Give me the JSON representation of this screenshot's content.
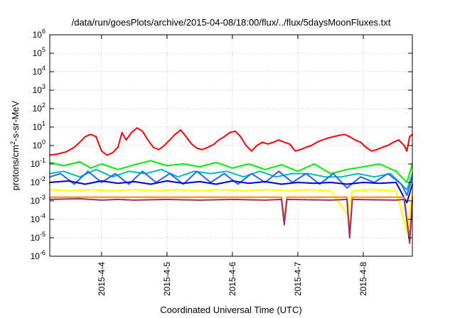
{
  "chart_data": {
    "type": "line",
    "title": "/data/run/goesPlots/archive/2015-04-08/18:00/flux/../flux/5daysMoonFluxes.txt",
    "xlabel": "Coordinated Universal Time (UTC)",
    "ylabel": {
      "prefix": "protons/cm",
      "sup": "2",
      "suffix": "-s-sr-MeV"
    },
    "yscale": "log",
    "ylim": [
      1e-06,
      1000000.0
    ],
    "xlim": [
      "2015-04-03T05:00",
      "2015-04-08T18:00"
    ],
    "grid": true,
    "y_ticks": [
      {
        "value": 1e-06,
        "base": "10",
        "exp": "-6"
      },
      {
        "value": 1e-05,
        "base": "10",
        "exp": "-5"
      },
      {
        "value": 0.0001,
        "base": "10",
        "exp": "-4"
      },
      {
        "value": 0.001,
        "base": "10",
        "exp": "-3"
      },
      {
        "value": 0.01,
        "base": "10",
        "exp": "-2"
      },
      {
        "value": 0.1,
        "base": "10",
        "exp": "-1"
      },
      {
        "value": 1.0,
        "base": "10",
        "exp": "0"
      },
      {
        "value": 10.0,
        "base": "10",
        "exp": "1"
      },
      {
        "value": 100.0,
        "base": "10",
        "exp": "2"
      },
      {
        "value": 1000.0,
        "base": "10",
        "exp": "3"
      },
      {
        "value": 10000.0,
        "base": "10",
        "exp": "4"
      },
      {
        "value": 100000.0,
        "base": "10",
        "exp": "5"
      },
      {
        "value": 1000000.0,
        "base": "10",
        "exp": "6"
      }
    ],
    "x_ticks": [
      {
        "value": "2015-04-04T00:00",
        "label": "2015-4-4"
      },
      {
        "value": "2015-04-05T00:00",
        "label": "2015-4-5"
      },
      {
        "value": "2015-04-06T00:00",
        "label": "2015-4-6"
      },
      {
        "value": "2015-04-07T00:00",
        "label": "2015-4-7"
      },
      {
        "value": "2015-04-08T00:00",
        "label": "2015-4-8"
      }
    ],
    "series": [
      {
        "color": "#ff0000",
        "points": [
          [
            "2015-04-03T05:00",
            0.3
          ],
          [
            "2015-04-03T08:00",
            0.35
          ],
          [
            "2015-04-03T11:00",
            0.45
          ],
          [
            "2015-04-03T14:00",
            0.8
          ],
          [
            "2015-04-03T16:00",
            1.5
          ],
          [
            "2015-04-03T18:00",
            3
          ],
          [
            "2015-04-03T20:00",
            4
          ],
          [
            "2015-04-03T22:00",
            3
          ],
          [
            "2015-04-04T00:00",
            0.5
          ],
          [
            "2015-04-04T02:00",
            0.3
          ],
          [
            "2015-04-04T04:00",
            0.4
          ],
          [
            "2015-04-04T06:00",
            0.8
          ],
          [
            "2015-04-04T07:30",
            5
          ],
          [
            "2015-04-04T09:00",
            2
          ],
          [
            "2015-04-04T11:00",
            5
          ],
          [
            "2015-04-04T13:00",
            9
          ],
          [
            "2015-04-04T15:00",
            6
          ],
          [
            "2015-04-04T17:00",
            2
          ],
          [
            "2015-04-04T19:00",
            0.8
          ],
          [
            "2015-04-04T21:00",
            0.6
          ],
          [
            "2015-04-04T23:00",
            1
          ],
          [
            "2015-04-05T01:00",
            2
          ],
          [
            "2015-04-05T03:00",
            4
          ],
          [
            "2015-04-05T05:00",
            7
          ],
          [
            "2015-04-05T07:00",
            3
          ],
          [
            "2015-04-05T09:00",
            1.2
          ],
          [
            "2015-04-05T11:00",
            0.7
          ],
          [
            "2015-04-05T13:00",
            0.6
          ],
          [
            "2015-04-05T15:00",
            0.8
          ],
          [
            "2015-04-05T17:00",
            1.1
          ],
          [
            "2015-04-05T19:00",
            2
          ],
          [
            "2015-04-05T21:00",
            3
          ],
          [
            "2015-04-05T23:00",
            5
          ],
          [
            "2015-04-06T01:00",
            6
          ],
          [
            "2015-04-06T03:00",
            3
          ],
          [
            "2015-04-06T05:00",
            1
          ],
          [
            "2015-04-06T07:00",
            0.5
          ],
          [
            "2015-04-06T09:00",
            1
          ],
          [
            "2015-04-06T11:00",
            1.5
          ],
          [
            "2015-04-06T13:00",
            1.2
          ],
          [
            "2015-04-06T15:00",
            1.5
          ],
          [
            "2015-04-06T17:00",
            2
          ],
          [
            "2015-04-06T19:00",
            1.5
          ],
          [
            "2015-04-06T21:00",
            1.2
          ],
          [
            "2015-04-06T23:00",
            0.5
          ],
          [
            "2015-04-07T01:00",
            0.6
          ],
          [
            "2015-04-07T03:00",
            0.8
          ],
          [
            "2015-04-07T05:00",
            1
          ],
          [
            "2015-04-07T07:00",
            1.5
          ],
          [
            "2015-04-07T09:00",
            2
          ],
          [
            "2015-04-07T11:00",
            2.5
          ],
          [
            "2015-04-07T13:00",
            3
          ],
          [
            "2015-04-07T15:00",
            3.5
          ],
          [
            "2015-04-07T17:00",
            4
          ],
          [
            "2015-04-07T19:00",
            3
          ],
          [
            "2015-04-07T21:00",
            2
          ],
          [
            "2015-04-07T23:00",
            1.5
          ],
          [
            "2015-04-08T01:00",
            0.8
          ],
          [
            "2015-04-08T03:00",
            0.5
          ],
          [
            "2015-04-08T05:00",
            0.6
          ],
          [
            "2015-04-08T07:00",
            0.8
          ],
          [
            "2015-04-08T09:00",
            1
          ],
          [
            "2015-04-08T11:00",
            1.5
          ],
          [
            "2015-04-08T13:00",
            2
          ],
          [
            "2015-04-08T15:00",
            1
          ],
          [
            "2015-04-08T16:00",
            0.5
          ],
          [
            "2015-04-08T17:00",
            3
          ],
          [
            "2015-04-08T18:00",
            4
          ]
        ]
      },
      {
        "color": "#00ee00",
        "points": [
          [
            "2015-04-03T05:00",
            0.12
          ],
          [
            "2015-04-03T10:00",
            0.08
          ],
          [
            "2015-04-03T16:00",
            0.13
          ],
          [
            "2015-04-03T20:00",
            0.06
          ],
          [
            "2015-04-04T00:00",
            0.1
          ],
          [
            "2015-04-04T06:00",
            0.05
          ],
          [
            "2015-04-04T12:00",
            0.09
          ],
          [
            "2015-04-04T18:00",
            0.15
          ],
          [
            "2015-04-05T00:00",
            0.08
          ],
          [
            "2015-04-05T06:00",
            0.1
          ],
          [
            "2015-04-05T12:00",
            0.07
          ],
          [
            "2015-04-05T18:00",
            0.12
          ],
          [
            "2015-04-06T00:00",
            0.06
          ],
          [
            "2015-04-06T06:00",
            0.1
          ],
          [
            "2015-04-06T12:00",
            0.05
          ],
          [
            "2015-04-06T18:00",
            0.09
          ],
          [
            "2015-04-07T00:00",
            0.04
          ],
          [
            "2015-04-07T06:00",
            0.1
          ],
          [
            "2015-04-07T12:00",
            0.03
          ],
          [
            "2015-04-07T18:00",
            0.05
          ],
          [
            "2015-04-08T00:00",
            0.07
          ],
          [
            "2015-04-08T06:00",
            0.1
          ],
          [
            "2015-04-08T12:00",
            0.04
          ],
          [
            "2015-04-08T16:00",
            0.01
          ],
          [
            "2015-04-08T18:00",
            0.1
          ]
        ]
      },
      {
        "color": "#00bbbb",
        "points": [
          [
            "2015-04-03T05:00",
            0.03
          ],
          [
            "2015-04-03T10:00",
            0.04
          ],
          [
            "2015-04-03T16:00",
            0.02
          ],
          [
            "2015-04-03T22:00",
            0.05
          ],
          [
            "2015-04-04T04:00",
            0.02
          ],
          [
            "2015-04-04T10:00",
            0.04
          ],
          [
            "2015-04-04T16:00",
            0.03
          ],
          [
            "2015-04-04T22:00",
            0.05
          ],
          [
            "2015-04-05T04:00",
            0.02
          ],
          [
            "2015-04-05T10:00",
            0.04
          ],
          [
            "2015-04-05T16:00",
            0.03
          ],
          [
            "2015-04-05T22:00",
            0.04
          ],
          [
            "2015-04-06T04:00",
            0.02
          ],
          [
            "2015-04-06T10:00",
            0.04
          ],
          [
            "2015-04-06T16:00",
            0.02
          ],
          [
            "2015-04-06T22:00",
            0.03
          ],
          [
            "2015-04-07T04:00",
            0.03
          ],
          [
            "2015-04-07T10:00",
            0.02
          ],
          [
            "2015-04-07T16:00",
            0.02
          ],
          [
            "2015-04-07T22:00",
            0.03
          ],
          [
            "2015-04-08T04:00",
            0.02
          ],
          [
            "2015-04-08T10:00",
            0.03
          ],
          [
            "2015-04-08T16:00",
            0.004
          ],
          [
            "2015-04-08T18:00",
            0.03
          ]
        ]
      },
      {
        "color": "#2266ff",
        "points": [
          [
            "2015-04-03T05:00",
            0.02
          ],
          [
            "2015-04-03T09:00",
            0.03
          ],
          [
            "2015-04-03T14:00",
            0.008
          ],
          [
            "2015-04-03T19:00",
            0.04
          ],
          [
            "2015-04-04T00:00",
            0.01
          ],
          [
            "2015-04-04T05:00",
            0.03
          ],
          [
            "2015-04-04T10:00",
            0.008
          ],
          [
            "2015-04-04T15:00",
            0.04
          ],
          [
            "2015-04-04T20:00",
            0.01
          ],
          [
            "2015-04-05T01:00",
            0.03
          ],
          [
            "2015-04-05T06:00",
            0.008
          ],
          [
            "2015-04-05T11:00",
            0.04
          ],
          [
            "2015-04-05T16:00",
            0.01
          ],
          [
            "2015-04-05T21:00",
            0.03
          ],
          [
            "2015-04-06T02:00",
            0.008
          ],
          [
            "2015-04-06T07:00",
            0.03
          ],
          [
            "2015-04-06T12:00",
            0.01
          ],
          [
            "2015-04-06T17:00",
            0.04
          ],
          [
            "2015-04-06T22:00",
            0.01
          ],
          [
            "2015-04-07T03:00",
            0.03
          ],
          [
            "2015-04-07T08:00",
            0.008
          ],
          [
            "2015-04-07T13:00",
            0.03
          ],
          [
            "2015-04-07T18:00",
            0.005
          ],
          [
            "2015-04-07T23:00",
            0.02
          ],
          [
            "2015-04-08T04:00",
            0.01
          ],
          [
            "2015-04-08T09:00",
            0.03
          ],
          [
            "2015-04-08T14:00",
            0.008
          ],
          [
            "2015-04-08T16:00",
            0.002
          ],
          [
            "2015-04-08T18:00",
            0.02
          ]
        ]
      },
      {
        "color": "#0000cc",
        "points": [
          [
            "2015-04-03T05:00",
            0.01
          ],
          [
            "2015-04-03T12:00",
            0.012
          ],
          [
            "2015-04-03T18:00",
            0.008
          ],
          [
            "2015-04-04T00:00",
            0.012
          ],
          [
            "2015-04-04T06:00",
            0.009
          ],
          [
            "2015-04-04T12:00",
            0.011
          ],
          [
            "2015-04-04T18:00",
            0.008
          ],
          [
            "2015-04-05T00:00",
            0.012
          ],
          [
            "2015-04-05T06:00",
            0.009
          ],
          [
            "2015-04-05T12:00",
            0.011
          ],
          [
            "2015-04-05T18:00",
            0.008
          ],
          [
            "2015-04-06T00:00",
            0.012
          ],
          [
            "2015-04-06T06:00",
            0.009
          ],
          [
            "2015-04-06T12:00",
            0.011
          ],
          [
            "2015-04-06T18:00",
            0.008
          ],
          [
            "2015-04-07T00:00",
            0.01
          ],
          [
            "2015-04-07T06:00",
            0.009
          ],
          [
            "2015-04-07T12:00",
            0.01
          ],
          [
            "2015-04-07T18:00",
            0.008
          ],
          [
            "2015-04-08T00:00",
            0.01
          ],
          [
            "2015-04-08T06:00",
            0.009
          ],
          [
            "2015-04-08T12:00",
            0.01
          ],
          [
            "2015-04-08T16:00",
            0.0008
          ],
          [
            "2015-04-08T18:00",
            0.008
          ]
        ]
      },
      {
        "color": "#ffff00",
        "points": [
          [
            "2015-04-03T05:00",
            0.004
          ],
          [
            "2015-04-03T12:00",
            0.0035
          ],
          [
            "2015-04-03T20:00",
            0.004
          ],
          [
            "2015-04-04T04:00",
            0.0035
          ],
          [
            "2015-04-04T12:00",
            0.004
          ],
          [
            "2015-04-04T20:00",
            0.0035
          ],
          [
            "2015-04-05T04:00",
            0.004
          ],
          [
            "2015-04-05T12:00",
            0.0035
          ],
          [
            "2015-04-05T20:00",
            0.004
          ],
          [
            "2015-04-06T04:00",
            0.0035
          ],
          [
            "2015-04-06T12:00",
            0.004
          ],
          [
            "2015-04-06T20:00",
            0.0035
          ],
          [
            "2015-04-07T04:00",
            0.004
          ],
          [
            "2015-04-07T12:00",
            0.0035
          ],
          [
            "2015-04-07T18:00",
            0.0002
          ],
          [
            "2015-04-07T20:00",
            0.0035
          ],
          [
            "2015-04-08T04:00",
            0.004
          ],
          [
            "2015-04-08T12:00",
            0.0035
          ],
          [
            "2015-04-08T16:00",
            2e-05
          ],
          [
            "2015-04-08T18:00",
            0.003
          ]
        ]
      },
      {
        "color": "#ff8800",
        "points": [
          [
            "2015-04-03T05:00",
            0.0016
          ],
          [
            "2015-04-04T00:00",
            0.0016
          ],
          [
            "2015-04-05T00:00",
            0.0016
          ],
          [
            "2015-04-06T00:00",
            0.0016
          ],
          [
            "2015-04-06T18:00",
            0.0016
          ],
          [
            "2015-04-06T19:00",
            0.0001
          ],
          [
            "2015-04-06T20:00",
            0.0016
          ],
          [
            "2015-04-07T18:00",
            0.0016
          ],
          [
            "2015-04-07T19:00",
            2e-05
          ],
          [
            "2015-04-07T20:00",
            0.0016
          ],
          [
            "2015-04-08T15:00",
            0.0016
          ],
          [
            "2015-04-08T17:00",
            8e-06
          ],
          [
            "2015-04-08T18:00",
            0.0016
          ]
        ]
      },
      {
        "color": "#993366",
        "points": [
          [
            "2015-04-03T05:00",
            0.0012
          ],
          [
            "2015-04-03T16:00",
            0.0013
          ],
          [
            "2015-04-04T00:00",
            0.0011
          ],
          [
            "2015-04-04T06:00",
            0.0012
          ],
          [
            "2015-04-04T12:00",
            0.0011
          ],
          [
            "2015-04-05T00:00",
            0.0012
          ],
          [
            "2015-04-05T12:00",
            0.0011
          ],
          [
            "2015-04-06T00:00",
            0.0012
          ],
          [
            "2015-04-06T12:00",
            0.0011
          ],
          [
            "2015-04-06T18:00",
            0.0012
          ],
          [
            "2015-04-06T19:00",
            5e-05
          ],
          [
            "2015-04-06T20:00",
            0.0012
          ],
          [
            "2015-04-07T12:00",
            0.0011
          ],
          [
            "2015-04-07T18:00",
            0.0012
          ],
          [
            "2015-04-07T19:00",
            1e-05
          ],
          [
            "2015-04-07T20:00",
            0.0012
          ],
          [
            "2015-04-08T12:00",
            0.0011
          ],
          [
            "2015-04-08T15:00",
            0.0012
          ],
          [
            "2015-04-08T17:00",
            5e-06
          ],
          [
            "2015-04-08T18:00",
            0.001
          ]
        ]
      }
    ]
  }
}
